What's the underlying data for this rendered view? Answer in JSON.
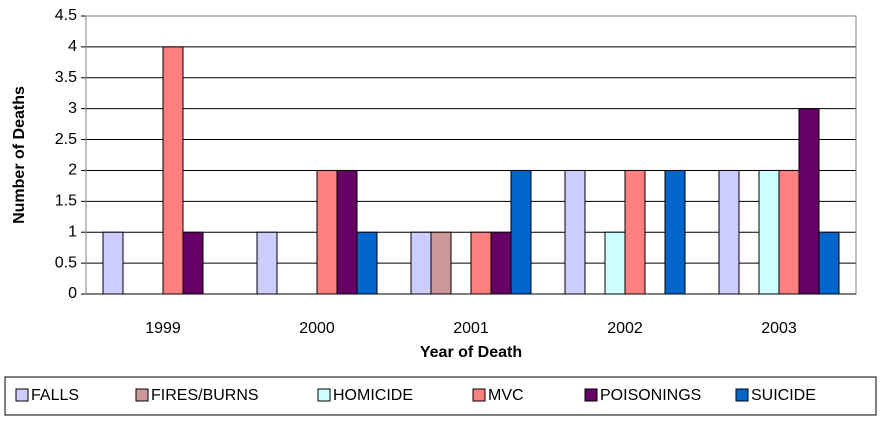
{
  "chart_data": {
    "type": "bar",
    "x_label": "Year of Death",
    "y_label": "Number of Deaths",
    "categories": [
      "1999",
      "2000",
      "2001",
      "2002",
      "2003"
    ],
    "series": [
      {
        "name": "FALLS",
        "color": "#ccccff",
        "values": [
          1,
          1,
          1,
          2,
          2
        ]
      },
      {
        "name": "FIRES/BURNS",
        "color": "#cc9999",
        "values": [
          0,
          0,
          1,
          0,
          0
        ]
      },
      {
        "name": "HOMICIDE",
        "color": "#ccffff",
        "values": [
          0,
          0,
          0,
          1,
          2
        ]
      },
      {
        "name": "MVC",
        "color": "#ff8080",
        "values": [
          4,
          2,
          1,
          2,
          2
        ]
      },
      {
        "name": "POISONINGS",
        "color": "#660066",
        "values": [
          1,
          2,
          1,
          0,
          3
        ]
      },
      {
        "name": "SUICIDE",
        "color": "#0066cc",
        "values": [
          0,
          1,
          2,
          2,
          1
        ]
      }
    ],
    "ylim": [
      0,
      4.5
    ],
    "yticks": [
      0,
      0.5,
      1,
      1.5,
      2,
      2.5,
      3,
      3.5,
      4,
      4.5
    ],
    "grid": true,
    "legend": "bottom"
  }
}
